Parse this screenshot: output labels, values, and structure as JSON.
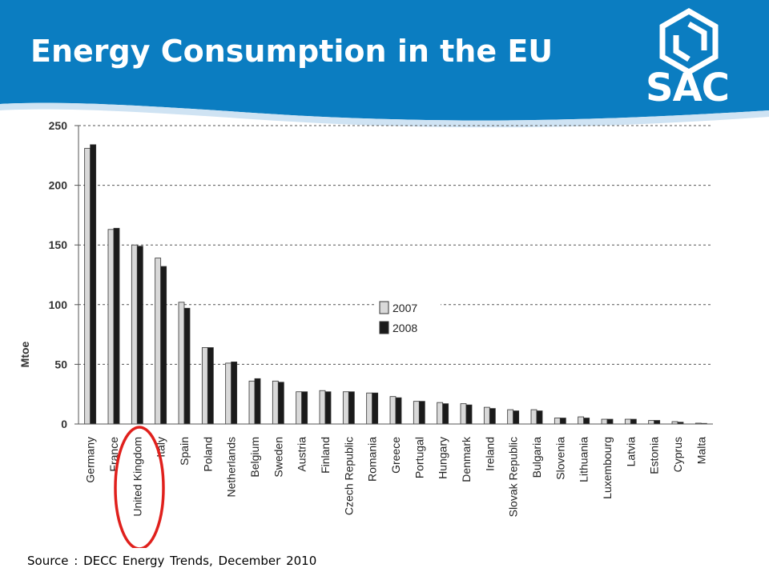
{
  "slide": {
    "title": "Energy Consumption in the EU",
    "logo_text": "SAC",
    "source": "Source : DECC Energy Trends, December 2010",
    "header_color": "#0b7dc1",
    "highlight_color": "#e0201c",
    "highlighted_category": "United Kingdom"
  },
  "chart_data": {
    "type": "bar",
    "title": "",
    "xlabel": "",
    "ylabel": "Mtoe",
    "ylim": [
      0,
      250
    ],
    "yticks": [
      0,
      50,
      100,
      150,
      200,
      250
    ],
    "grid": true,
    "legend_position": "center-right",
    "categories": [
      "Germany",
      "France",
      "United Kingdom",
      "Italy",
      "Spain",
      "Poland",
      "Netherlands",
      "Belgium",
      "Sweden",
      "Austria",
      "Finland",
      "Czech Republic",
      "Romania",
      "Greece",
      "Portugal",
      "Hungary",
      "Denmark",
      "Ireland",
      "Slovak Republic",
      "Bulgaria",
      "Slovenia",
      "Lithuania",
      "Luxembourg",
      "Latvia",
      "Estonia",
      "Cyprus",
      "Malta"
    ],
    "series": [
      {
        "name": "2007",
        "color": "#d9d9d9",
        "values": [
          231,
          163,
          150,
          139,
          102,
          64,
          51,
          36,
          36,
          27,
          28,
          27,
          26,
          23,
          19,
          18,
          17,
          14,
          12,
          12,
          5,
          6,
          4,
          4,
          3,
          2,
          0.7
        ]
      },
      {
        "name": "2008",
        "color": "#1a1a1a",
        "values": [
          234,
          164,
          149,
          132,
          97,
          64,
          52,
          38,
          35,
          27,
          27,
          27,
          26,
          22,
          19,
          17,
          16,
          13,
          11,
          11,
          5,
          5,
          4,
          4,
          3,
          1.5,
          0.5
        ]
      }
    ]
  }
}
